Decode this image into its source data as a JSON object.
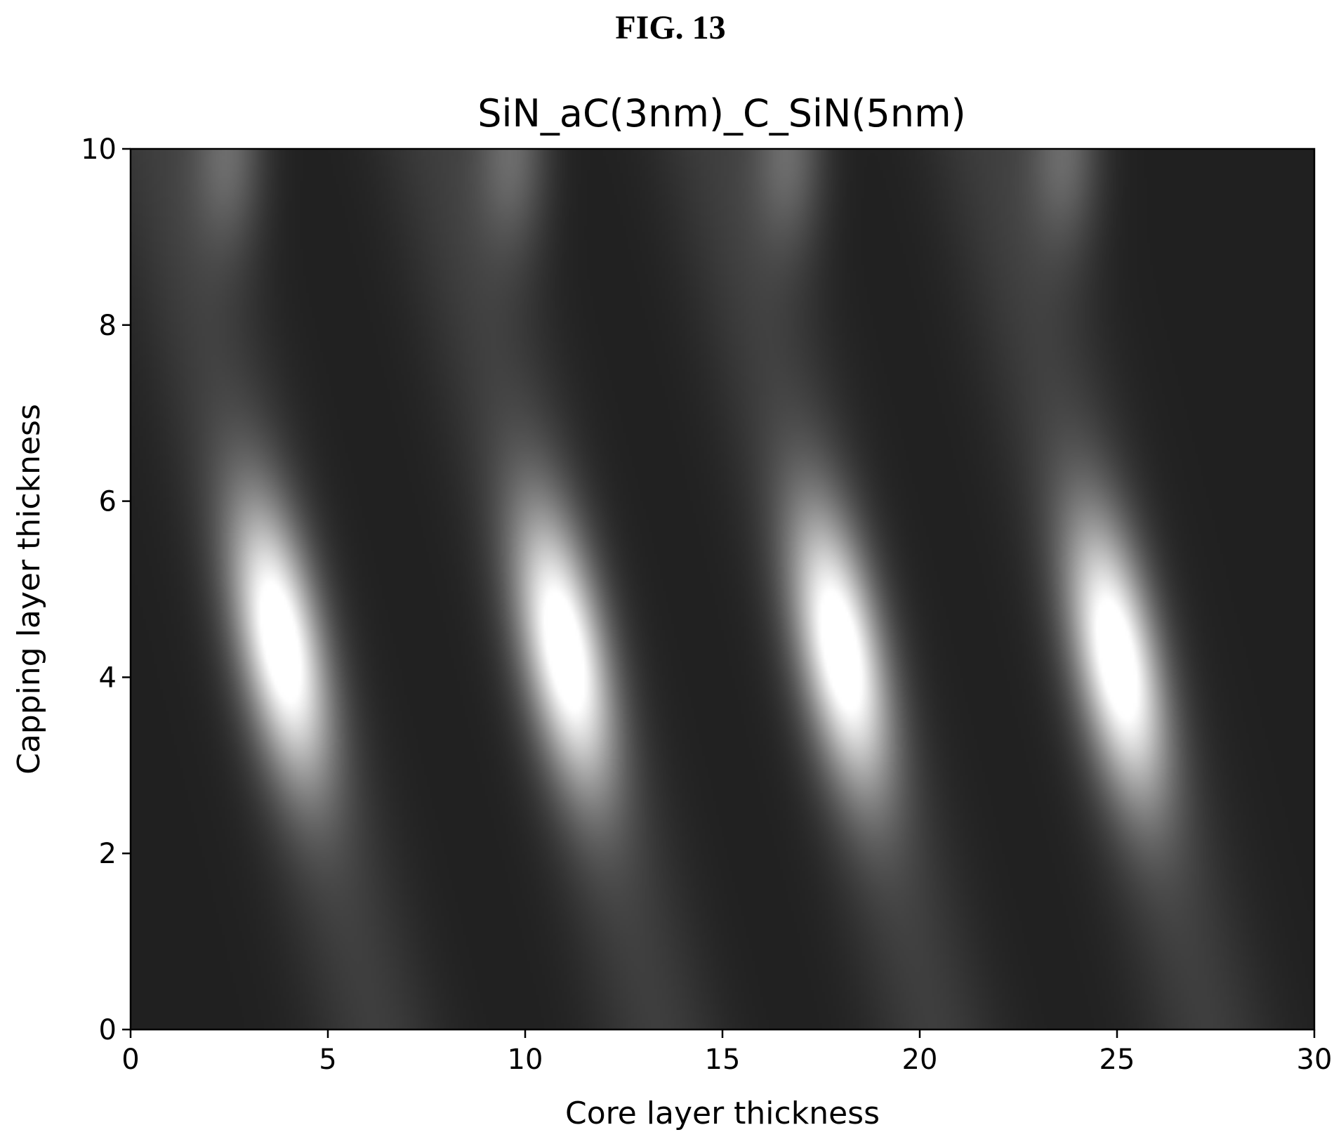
{
  "figure_label": "FIG. 13",
  "chart_data": {
    "type": "heatmap",
    "title": "SiN_aC(3nm)_C_SiN(5nm)",
    "xlabel": "Core layer thickness",
    "ylabel": "Capping layer thickness",
    "xlim": [
      0,
      30
    ],
    "ylim": [
      0,
      10
    ],
    "xticks": [
      0,
      5,
      10,
      15,
      20,
      25,
      30
    ],
    "yticks": [
      0,
      2,
      4,
      6,
      8,
      10
    ],
    "grid": false,
    "legend": "none",
    "colormap": "grayscale",
    "colors": {
      "low": "#202020",
      "high": "#ffffff"
    },
    "peaks": [
      {
        "x": 3.8,
        "y": 4.4
      },
      {
        "x": 11.0,
        "y": 4.3
      },
      {
        "x": 18.0,
        "y": 4.3
      },
      {
        "x": 25.0,
        "y": 4.2
      }
    ],
    "secondary_maxima_y": 10
  }
}
